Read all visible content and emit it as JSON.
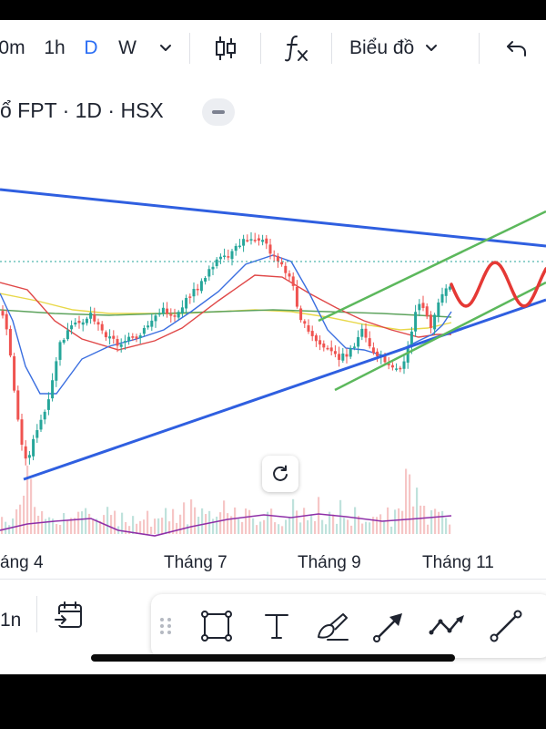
{
  "toolbar": {
    "intervals": [
      "0m",
      "1h",
      "D",
      "W"
    ],
    "active_interval": "D",
    "chart_type_label": "Biểu đồ"
  },
  "symbol": {
    "title": "ổ FPT · 1D · HSX"
  },
  "chart_data": {
    "type": "line",
    "x_tick_labels": [
      "áng 4",
      "Tháng 7",
      "Tháng 9",
      "Tháng 11"
    ],
    "grid": false,
    "legend": "none",
    "annotations": [
      "blue triangle trend lines",
      "green ascending channel",
      "red projected wave",
      "dotted horizontal price line"
    ],
    "colors": {
      "up": "#26a69a",
      "down": "#ef5350",
      "trendline": "#2f5fe0",
      "channel": "#5cb85c",
      "projection": "#e53935",
      "ma_fast": "#3b6fe0",
      "ma_mid": "#e04848",
      "ma_slow": "#e8d84a",
      "ma_long": "#5da35d",
      "volume_ma": "#8e2fa8"
    }
  },
  "bottom": {
    "range_label": "1n"
  },
  "icons": [
    "chevron-down-icon",
    "candlestick-icon",
    "indicator-fx-icon",
    "undo-icon",
    "reset-icon",
    "date-range-icon",
    "drag-handle-icon",
    "rectangle-icon",
    "text-icon",
    "brush-icon",
    "arrow-icon",
    "path-icon",
    "trend-line-icon"
  ]
}
